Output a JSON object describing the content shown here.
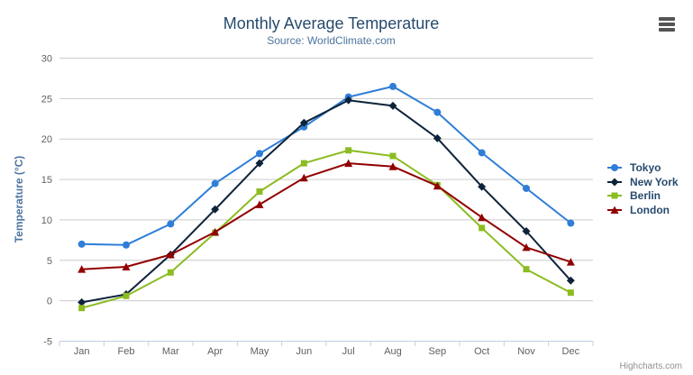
{
  "chart": {
    "title": "Monthly Average Temperature",
    "subtitle": "Source: WorldClimate.com",
    "credits": "Highcharts.com",
    "export_menu_icon": "hamburger-icon"
  },
  "chart_data": {
    "type": "line",
    "title": "Monthly Average Temperature",
    "subtitle": "Source: WorldClimate.com",
    "xlabel": "",
    "ylabel": "Temperature (°C)",
    "categories": [
      "Jan",
      "Feb",
      "Mar",
      "Apr",
      "May",
      "Jun",
      "Jul",
      "Aug",
      "Sep",
      "Oct",
      "Nov",
      "Dec"
    ],
    "series": [
      {
        "name": "Tokyo",
        "color": "#2f7ed8",
        "marker": "circle",
        "values": [
          7.0,
          6.9,
          9.5,
          14.5,
          18.2,
          21.5,
          25.2,
          26.5,
          23.3,
          18.3,
          13.9,
          9.6
        ]
      },
      {
        "name": "New York",
        "color": "#0d233a",
        "marker": "diamond",
        "values": [
          -0.2,
          0.8,
          5.7,
          11.3,
          17.0,
          22.0,
          24.8,
          24.1,
          20.1,
          14.1,
          8.6,
          2.5
        ]
      },
      {
        "name": "Berlin",
        "color": "#8bbc21",
        "marker": "square",
        "values": [
          -0.9,
          0.6,
          3.5,
          8.4,
          13.5,
          17.0,
          18.6,
          17.9,
          14.3,
          9.0,
          3.9,
          1.0
        ]
      },
      {
        "name": "London",
        "color": "#910000",
        "marker": "triangle",
        "values": [
          3.9,
          4.2,
          5.7,
          8.5,
          11.9,
          15.2,
          17.0,
          16.6,
          14.2,
          10.3,
          6.6,
          4.8
        ]
      }
    ],
    "ylim": [
      -5,
      30
    ],
    "ytick_step": 5,
    "yticks": [
      -5,
      0,
      5,
      10,
      15,
      20,
      25,
      30
    ],
    "grid": true,
    "legend_position": "right",
    "colors": {
      "grid_line": "#cccccc",
      "axis_line": "#c0d0e0",
      "axis_label": "#606060",
      "title": "#274b6d",
      "subtitle": "#4d759e",
      "axis_title": "#4d759e",
      "legend_text": "#274b6d",
      "credits_text": "#909090"
    }
  }
}
